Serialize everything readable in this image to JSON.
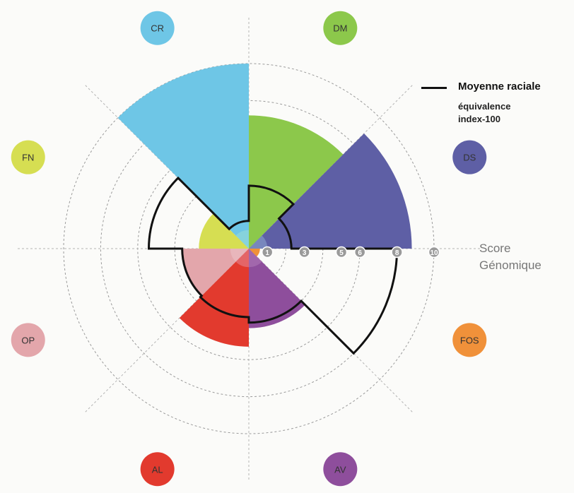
{
  "chart_data": {
    "type": "polar-area",
    "axis_title_line1": "Score",
    "axis_title_line2": "Génomique",
    "rmax": 10,
    "ring_ticks": [
      1,
      3,
      5,
      6,
      8,
      10
    ],
    "legend": {
      "line_label": "Moyenne raciale",
      "sub_line1": "équivalence",
      "sub_line2": "index-100"
    },
    "categories": [
      {
        "name": "DM",
        "value": 7.2,
        "average": 3.4,
        "color": "#8cc84b"
      },
      {
        "name": "DS",
        "value": 8.8,
        "average": 2.3,
        "color": "#5e5fa5"
      },
      {
        "name": "FOS",
        "value": 0.6,
        "average": 8.0,
        "color": "#f0913a"
      },
      {
        "name": "AV",
        "value": 4.3,
        "average": 4.0,
        "color": "#8e4e9c"
      },
      {
        "name": "AL",
        "value": 5.3,
        "average": 3.7,
        "color": "#e23a2e"
      },
      {
        "name": "OP",
        "value": 3.6,
        "average": 3.6,
        "color": "#e3a6ab"
      },
      {
        "name": "FN",
        "value": 2.7,
        "average": 5.4,
        "color": "#d6de52"
      },
      {
        "name": "CR",
        "value": 10.0,
        "average": 1.5,
        "color": "#6ec6e6"
      }
    ],
    "inner_colors": [
      "#8cc84b",
      "#7b8cc0",
      "#f0913a",
      "#a46aae",
      "#e46a6e",
      "#e8b8bc",
      "#d6de52",
      "#88d4dc"
    ],
    "grid": true,
    "legend_position": "right"
  }
}
